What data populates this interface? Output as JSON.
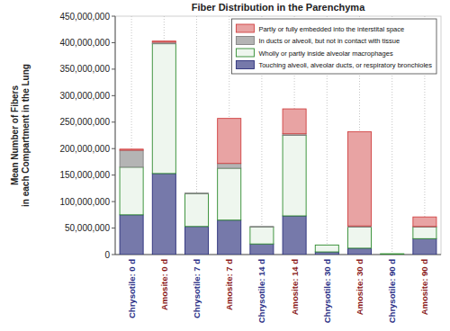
{
  "chart_data": {
    "type": "bar",
    "title": "Fiber Distribution in the Parenchyma",
    "y_label": [
      "Mean Number of Fibers",
      "in each Compartment in the Lung"
    ],
    "categories": [
      "Chrysotile: 0 d",
      "Amosite: 0 d",
      "Chrysotile: 7 d",
      "Amosite: 7 d",
      "Chrysotile: 14 d",
      "Amosite: 14 d",
      "Chrysotile: 30 d",
      "Amosite: 30 d",
      "Chrysotile: 90 d",
      "Amosite: 90 d"
    ],
    "series": [
      {
        "name": "Touching alveoli, alveolar ducts, or respiratory bronchioles",
        "color": "#7679aa",
        "values": [
          75000000,
          153000000,
          53000000,
          65000000,
          20000000,
          73000000,
          5000000,
          12000000,
          500000,
          30000000
        ]
      },
      {
        "name": "Wholly or partly inside alveolar macrophages",
        "color": "#eef6ee",
        "values": [
          90000000,
          245000000,
          62000000,
          98000000,
          32000000,
          152000000,
          13000000,
          40000000,
          1000000,
          22000000
        ]
      },
      {
        "name": "In ducts or alveoli, but not in contact with tissue",
        "color": "#b4b4b4",
        "values": [
          32000000,
          3000000,
          1000000,
          9000000,
          1000000,
          3000000,
          0,
          2000000,
          0,
          1000000
        ]
      },
      {
        "name": "Partly or fully embedded into the interstital space",
        "color": "#e8a3a3",
        "values": [
          2000000,
          2000000,
          0,
          85000000,
          0,
          47000000,
          0,
          178000000,
          0,
          18000000
        ]
      }
    ],
    "ylim": [
      0,
      450000000
    ],
    "yticks": [
      0,
      {
        "value": 50000000,
        "label": "50,000,000"
      },
      {
        "value": 100000000,
        "label": "100,000,000"
      },
      {
        "value": 150000000,
        "label": "150,000,000"
      },
      {
        "value": 200000000,
        "label": "200,000,000"
      },
      {
        "value": 250000000,
        "label": "250,000,000"
      },
      {
        "value": 300000000,
        "label": "300,000,000"
      },
      {
        "value": 350000000,
        "label": "350,000,000"
      },
      {
        "value": 400000000,
        "label": "400,000,000"
      },
      {
        "value": 450000000,
        "label": "450,000,000"
      }
    ],
    "stacked": true,
    "grid": true,
    "legend": "top-right"
  }
}
